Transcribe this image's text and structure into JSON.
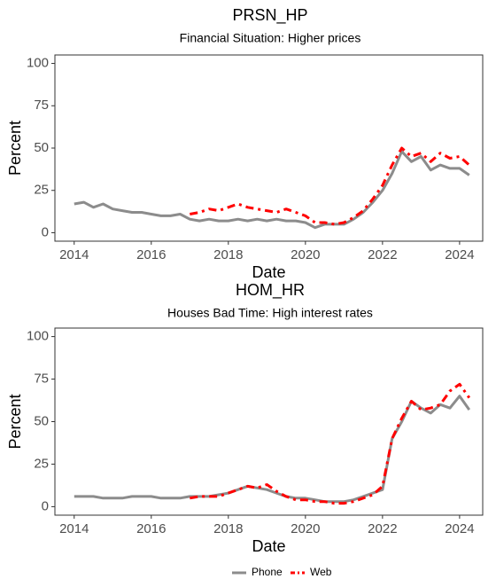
{
  "chart_data": [
    {
      "type": "line",
      "title": "PRSN_HP",
      "subtitle": "Financial Situation: Higher prices",
      "x_label": "Date",
      "y_label": "Percent",
      "xlim": [
        2013.5,
        2024.6
      ],
      "xticks": [
        2014,
        2016,
        2018,
        2020,
        2022,
        2024
      ],
      "ylim": [
        -5,
        105
      ],
      "yticks": [
        0,
        25,
        50,
        75,
        100
      ],
      "series": [
        {
          "name": "Phone",
          "color": "#8c8c8c",
          "dash": false,
          "x": [
            2014,
            2014.25,
            2014.5,
            2014.75,
            2015,
            2015.25,
            2015.5,
            2015.75,
            2016,
            2016.25,
            2016.5,
            2016.75,
            2017,
            2017.25,
            2017.5,
            2017.75,
            2018,
            2018.25,
            2018.5,
            2018.75,
            2019,
            2019.25,
            2019.5,
            2019.75,
            2020,
            2020.25,
            2020.5,
            2020.75,
            2021,
            2021.25,
            2021.5,
            2021.75,
            2022,
            2022.25,
            2022.5,
            2022.75,
            2023,
            2023.25,
            2023.5,
            2023.75,
            2024,
            2024.25
          ],
          "values": [
            17,
            18,
            15,
            17,
            14,
            13,
            12,
            12,
            11,
            10,
            10,
            11,
            8,
            7,
            8,
            7,
            7,
            8,
            7,
            8,
            7,
            8,
            7,
            7,
            6,
            3,
            5,
            5,
            5,
            8,
            12,
            18,
            25,
            35,
            48,
            42,
            45,
            37,
            40,
            38,
            38,
            34
          ]
        },
        {
          "name": "Web",
          "color": "#ff0000",
          "dash": true,
          "x": [
            2017,
            2017.25,
            2017.5,
            2017.75,
            2018,
            2018.25,
            2018.5,
            2018.75,
            2019,
            2019.25,
            2019.5,
            2019.75,
            2020,
            2020.25,
            2020.5,
            2020.75,
            2021,
            2021.25,
            2021.5,
            2021.75,
            2022,
            2022.25,
            2022.5,
            2022.75,
            2023,
            2023.25,
            2023.5,
            2023.75,
            2024,
            2024.25
          ],
          "values": [
            11,
            12,
            14,
            13,
            15,
            17,
            15,
            14,
            13,
            12,
            14,
            12,
            10,
            6,
            6,
            5,
            6,
            9,
            13,
            20,
            28,
            40,
            50,
            45,
            47,
            42,
            47,
            44,
            45,
            40
          ]
        }
      ]
    },
    {
      "type": "line",
      "title": "HOM_HR",
      "subtitle": "Houses Bad Time: High interest rates",
      "x_label": "Date",
      "y_label": "Percent",
      "xlim": [
        2013.5,
        2024.6
      ],
      "xticks": [
        2014,
        2016,
        2018,
        2020,
        2022,
        2024
      ],
      "ylim": [
        -5,
        105
      ],
      "yticks": [
        0,
        25,
        50,
        75,
        100
      ],
      "series": [
        {
          "color": "#8c8c8c",
          "dash": false,
          "x": [
            2014,
            2014.25,
            2014.5,
            2014.75,
            2015,
            2015.25,
            2015.5,
            2015.75,
            2016,
            2016.25,
            2016.5,
            2016.75,
            2017,
            2017.25,
            2017.5,
            2017.75,
            2018,
            2018.25,
            2018.5,
            2018.75,
            2019,
            2019.25,
            2019.5,
            2019.75,
            2020,
            2020.25,
            2020.5,
            2020.75,
            2021,
            2021.25,
            2021.5,
            2021.75,
            2022,
            2022.25,
            2022.5,
            2022.75,
            2023,
            2023.25,
            2023.5,
            2023.75,
            2024,
            2024.25
          ],
          "values": [
            6,
            6,
            6,
            5,
            5,
            5,
            6,
            6,
            6,
            5,
            5,
            5,
            6,
            6,
            6,
            7,
            8,
            10,
            12,
            11,
            10,
            8,
            6,
            5,
            5,
            4,
            3,
            3,
            3,
            4,
            6,
            8,
            10,
            40,
            50,
            62,
            58,
            55,
            60,
            58,
            65,
            57
          ]
        },
        {
          "color": "#ff0000",
          "dash": true,
          "x": [
            2017,
            2017.25,
            2017.5,
            2017.75,
            2018,
            2018.25,
            2018.5,
            2018.75,
            2019,
            2019.25,
            2019.5,
            2019.75,
            2020,
            2020.25,
            2020.5,
            2020.75,
            2021,
            2021.25,
            2021.5,
            2021.75,
            2022,
            2022.25,
            2022.5,
            2022.75,
            2023,
            2023.25,
            2023.5,
            2023.75,
            2024,
            2024.25
          ],
          "values": [
            5,
            6,
            6,
            6,
            8,
            10,
            12,
            11,
            13,
            9,
            6,
            4,
            4,
            3,
            3,
            2,
            2,
            3,
            5,
            7,
            12,
            40,
            52,
            62,
            57,
            58,
            60,
            68,
            72,
            64
          ]
        }
      ]
    }
  ]
}
